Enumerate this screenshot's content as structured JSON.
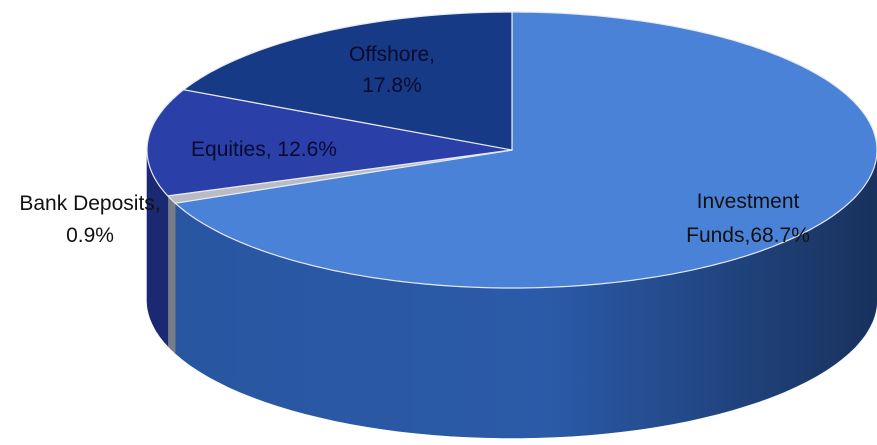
{
  "chart_data": {
    "type": "pie",
    "title": "",
    "slices": [
      {
        "label_line1": "Investment",
        "label_line2": "Funds,68.7%",
        "value": 68.7,
        "color": "#4A82D8",
        "side_color": "#2B5AA8",
        "label_color": "#111111"
      },
      {
        "label_line1": "Bank Deposits,",
        "label_line2": "0.9%",
        "value": 0.9,
        "color": "#B9BCC4",
        "side_color": "#7E828C",
        "label_color": "#111111"
      },
      {
        "label_line1": "Equities, 12.6%",
        "label_line2": "",
        "value": 12.6,
        "color": "#2A3FA8",
        "side_color": "#1B2B78",
        "label_color": "#0A0A30"
      },
      {
        "label_line1": "Offshore,",
        "label_line2": "17.8%",
        "value": 17.8,
        "color": "#163A86",
        "side_color": "#0E2558",
        "label_color": "#0A0A30"
      }
    ],
    "start_angle_deg": 90,
    "direction": "clockwise",
    "three_d": true,
    "legend": "none"
  }
}
